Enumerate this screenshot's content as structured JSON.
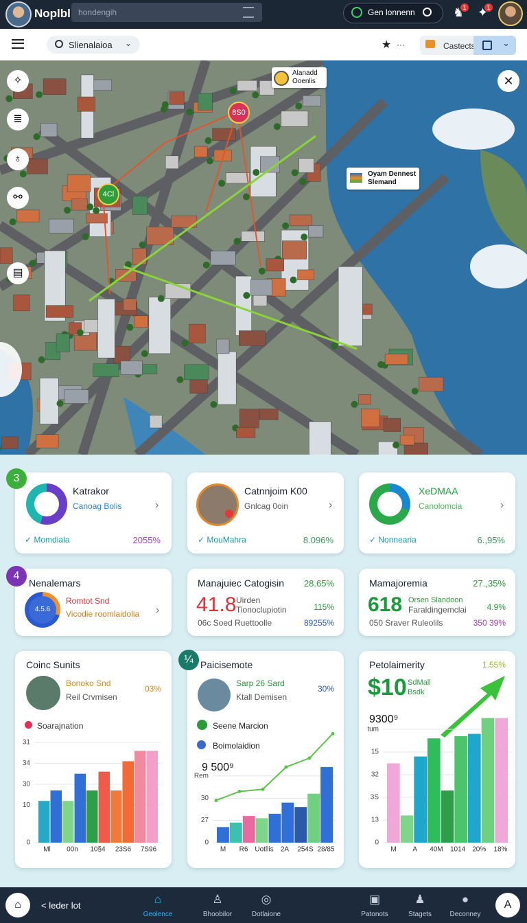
{
  "topbar": {
    "brand": "Noplbl",
    "search": "hondengih",
    "status": "Gen lonnenn",
    "notifications": [
      "1",
      "1"
    ]
  },
  "toolbar": {
    "search": "Slienalaioa",
    "more": "···",
    "button": "Castects"
  },
  "map": {
    "pin_top": "Alanadd Ooenlis",
    "marker_red": "8S0",
    "marker_green": "4Cl",
    "pin_right": "Oyam Dennest Slemand"
  },
  "cards_row1": [
    {
      "badge": "3",
      "title": "Katrakor",
      "subtitle": "Canoag Bolis",
      "footer": "Momdiala",
      "value": "2055%"
    },
    {
      "title": "Catnnjoim K00",
      "subtitle": "Gnlcag 0oin",
      "footer": "MouMahra",
      "value": "8.096%"
    },
    {
      "title": "XeDMAA",
      "subtitle": "Canolomcia",
      "footer": "Nonnearia",
      "value": "6.,95%"
    }
  ],
  "cards_row2": [
    {
      "badge": "4",
      "title": "Nenalemars",
      "donut": "4.5.6",
      "line1": "Romtot Snd",
      "line2": "Vicodie roomlaidolia"
    },
    {
      "title": "Manajuiec Catogisin",
      "value": "28.65%",
      "big": "41.8",
      "line1": "Uirden",
      "line2": "Tionoclupiotin",
      "value2": "115%",
      "line3": "06c Soed Ruettoolle",
      "value3": "89255%"
    },
    {
      "title": "Mamajoremia",
      "value": "27.,35%",
      "big": "618",
      "line1": "Orsen Slandoon",
      "line2": "Faraldingemclai",
      "value2": "4.9%",
      "line3": "050 Sraver Ruleolils",
      "value3": "350 39%"
    }
  ],
  "charts": [
    {
      "type": "bar",
      "title": "Coinc Sunits",
      "line1": "Bonoko Snd",
      "value": "03%",
      "line2": "Reil Crvmisen",
      "legend": [
        "Soarajnation"
      ],
      "ylim": [
        0,
        50
      ],
      "yticks": [
        0,
        {
          "value": 18,
          "label": "10"
        },
        {
          "value": 28,
          "label": "30"
        },
        {
          "value": 38,
          "label": "34"
        },
        {
          "value": 48,
          "label": "31"
        }
      ],
      "categories": [
        "Ml",
        "00n",
        "10§4",
        "23S6",
        "7S96"
      ],
      "bars": [
        {
          "value": 20,
          "color": "#26a9c4"
        },
        {
          "value": 25,
          "color": "#2f6fd6"
        },
        {
          "value": 20,
          "color": "#7fd68a"
        },
        {
          "value": 33,
          "color": "#2f6fd6"
        },
        {
          "value": 25,
          "color": "#2e9e4a"
        },
        {
          "value": 34,
          "color": "#ef5a4a"
        },
        {
          "value": 25,
          "color": "#f07a3a"
        },
        {
          "value": 39,
          "color": "#f26b36"
        },
        {
          "value": 44,
          "color": "#f08aa0"
        },
        {
          "value": 44,
          "color": "#f3a0c8"
        }
      ]
    },
    {
      "type": "bar",
      "badge": "¼",
      "title": "Paicisemote",
      "line1": "Sarp 26 Sard",
      "value": "30%",
      "line2": "Ktall Demisen",
      "legend": [
        "Seene Marcion",
        "Boimolaidion"
      ],
      "note": "9 500⁹",
      "ylim": [
        0,
        5
      ],
      "yticks": [
        0,
        {
          "value": 1,
          "label": "27"
        },
        {
          "value": 2,
          "label": "30"
        },
        {
          "value": 3,
          "label": "Rem"
        }
      ],
      "categories": [
        "M",
        "R6",
        "Uotllis",
        "2A",
        "254S",
        "28/85"
      ],
      "bars": [
        {
          "value": 0.7,
          "color": "#2f6fd6"
        },
        {
          "value": 0.9,
          "color": "#3cc0b0"
        },
        {
          "value": 1.2,
          "color": "#e86aa0"
        },
        {
          "value": 1.1,
          "color": "#7fd68a"
        },
        {
          "value": 1.3,
          "color": "#2f6fd6"
        },
        {
          "value": 1.8,
          "color": "#2f6fd6"
        },
        {
          "value": 1.6,
          "color": "#2a5aa8"
        },
        {
          "value": 2.2,
          "color": "#6fd080"
        },
        {
          "value": 3.4,
          "color": "#2f6fd6"
        }
      ],
      "line": {
        "color": "#5cc24a",
        "values": [
          1.9,
          2.3,
          2.4,
          3.4,
          3.8,
          4.9
        ]
      }
    },
    {
      "type": "bar",
      "title": "Petolaimerity",
      "value": "1.55%",
      "big": "$10",
      "line1": "SdMall",
      "line2": "Bsdk",
      "note": "9300⁹",
      "ylim": [
        0,
        6
      ],
      "yticks": [
        0,
        {
          "value": 1,
          "label": "13"
        },
        {
          "value": 2,
          "label": "3S"
        },
        {
          "value": 3,
          "label": "32"
        },
        {
          "value": 4,
          "label": "15"
        },
        {
          "value": 5,
          "label": "tum"
        }
      ],
      "categories": [
        "M",
        "A",
        "40M",
        "1014",
        "20%",
        "18%"
      ],
      "bars": [
        {
          "value": 3.5,
          "color": "#f0a8d8"
        },
        {
          "value": 1.2,
          "color": "#7fd68a"
        },
        {
          "value": 3.8,
          "color": "#1fa6cc"
        },
        {
          "value": 4.6,
          "color": "#2ebd5a"
        },
        {
          "value": 2.3,
          "color": "#2e9e4a"
        },
        {
          "value": 4.7,
          "color": "#4cc46a"
        },
        {
          "value": 4.8,
          "color": "#1fa6cc"
        },
        {
          "value": 5.5,
          "color": "#6fd080"
        },
        {
          "value": 5.5,
          "color": "#f0a8d8"
        }
      ]
    }
  ],
  "nav": {
    "back": "< leder lot",
    "items": [
      "Geolence",
      "Bhoobilor",
      "Dotlaione",
      "Patonots",
      "Stagets",
      "Deconney"
    ]
  }
}
